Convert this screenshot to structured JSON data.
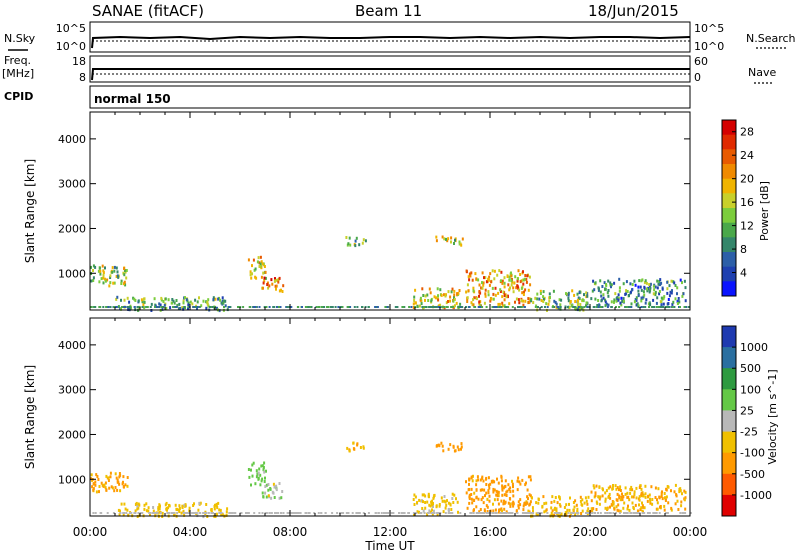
{
  "header": {
    "title": "SANAE (fitACF)",
    "beam": "Beam 11",
    "date": "18/Jun/2015"
  },
  "top_panels": {
    "nsky_label": "N.Sky",
    "nsearch_label": "N.Search",
    "noise_ticks": [
      "10^5",
      "10^0"
    ],
    "freq_label": "Freq.",
    "freq_unit": "[MHz]",
    "freq_ticks": [
      "18",
      "8"
    ],
    "nave_label": "Nave",
    "nave_ticks": [
      "60",
      "0"
    ],
    "cpid_label": "CPID",
    "cpid_value": "normal 150"
  },
  "colors": {
    "power": [
      "#0a14ff",
      "#1e40b0",
      "#2c5fa8",
      "#34866a",
      "#4aa84a",
      "#7ccd3c",
      "#c8d02a",
      "#f0b400",
      "#f08a00",
      "#e85a00",
      "#e02a00",
      "#d40000"
    ],
    "velocity": [
      "#e00000",
      "#ff5a00",
      "#ff9a00",
      "#f0c000",
      "#b8b8b8",
      "#64c846",
      "#2e9a40",
      "#2a6fa0",
      "#1e3ab0"
    ]
  },
  "chart_data": [
    {
      "type": "heatmap",
      "title": "",
      "xlabel": "",
      "ylabel": "Slant Range [km]",
      "xlim": [
        "00:00",
        "24:00"
      ],
      "ylim": [
        180,
        4600
      ],
      "x_ticks": [
        "00:00",
        "04:00",
        "08:00",
        "12:00",
        "16:00",
        "20:00",
        "00:00"
      ],
      "y_ticks": [
        1000,
        2000,
        3000,
        4000
      ],
      "colorbar": {
        "label": "Power [dB]",
        "ticks": [
          4,
          8,
          12,
          16,
          20,
          24,
          28
        ],
        "range": [
          0,
          30
        ]
      },
      "echo_regions": [
        {
          "t": [
            0.0,
            1.5
          ],
          "range_km": [
            750,
            1200
          ],
          "value": 14
        },
        {
          "t": [
            1.0,
            5.5
          ],
          "range_km": [
            200,
            500
          ],
          "value": 11
        },
        {
          "t": [
            6.3,
            7.0
          ],
          "range_km": [
            900,
            1400
          ],
          "value": 18
        },
        {
          "t": [
            6.8,
            7.7
          ],
          "range_km": [
            600,
            950
          ],
          "value": 22
        },
        {
          "t": [
            10.2,
            11.0
          ],
          "range_km": [
            1650,
            1850
          ],
          "value": 13
        },
        {
          "t": [
            13.8,
            14.9
          ],
          "range_km": [
            1650,
            1850
          ],
          "value": 16
        },
        {
          "t": [
            12.9,
            14.8
          ],
          "range_km": [
            250,
            700
          ],
          "value": 18
        },
        {
          "t": [
            15.0,
            17.6
          ],
          "range_km": [
            300,
            1100
          ],
          "value": 20
        },
        {
          "t": [
            17.6,
            19.9
          ],
          "range_km": [
            200,
            650
          ],
          "value": 12
        },
        {
          "t": [
            20.0,
            23.8
          ],
          "range_km": [
            300,
            900
          ],
          "value": 9
        }
      ]
    },
    {
      "type": "heatmap",
      "title": "",
      "xlabel": "Time UT",
      "ylabel": "Slant Range [km]",
      "xlim": [
        "00:00",
        "24:00"
      ],
      "ylim": [
        180,
        4600
      ],
      "x_ticks": [
        "00:00",
        "04:00",
        "08:00",
        "12:00",
        "16:00",
        "20:00",
        "00:00"
      ],
      "y_ticks": [
        1000,
        2000,
        3000,
        4000
      ],
      "colorbar": {
        "label": "Velocity [m s^-1]",
        "ticks": [
          1000,
          500,
          100,
          25,
          -25,
          -100,
          -500,
          -1000
        ],
        "range": [
          -1200,
          1200
        ]
      },
      "echo_regions": [
        {
          "t": [
            0.0,
            1.5
          ],
          "range_km": [
            750,
            1200
          ],
          "value": -150
        },
        {
          "t": [
            1.0,
            5.5
          ],
          "range_km": [
            200,
            500
          ],
          "value": -60
        },
        {
          "t": [
            6.3,
            7.0
          ],
          "range_km": [
            900,
            1400
          ],
          "value": 50
        },
        {
          "t": [
            6.8,
            7.7
          ],
          "range_km": [
            600,
            950
          ],
          "value": 10
        },
        {
          "t": [
            10.2,
            11.0
          ],
          "range_km": [
            1650,
            1850
          ],
          "value": -80
        },
        {
          "t": [
            13.8,
            14.9
          ],
          "range_km": [
            1650,
            1850
          ],
          "value": -300
        },
        {
          "t": [
            12.9,
            14.8
          ],
          "range_km": [
            250,
            700
          ],
          "value": -50
        },
        {
          "t": [
            15.0,
            17.6
          ],
          "range_km": [
            300,
            1100
          ],
          "value": -200
        },
        {
          "t": [
            17.6,
            19.9
          ],
          "range_km": [
            200,
            650
          ],
          "value": -70
        },
        {
          "t": [
            20.0,
            23.8
          ],
          "range_km": [
            300,
            900
          ],
          "value": -100
        }
      ]
    }
  ]
}
